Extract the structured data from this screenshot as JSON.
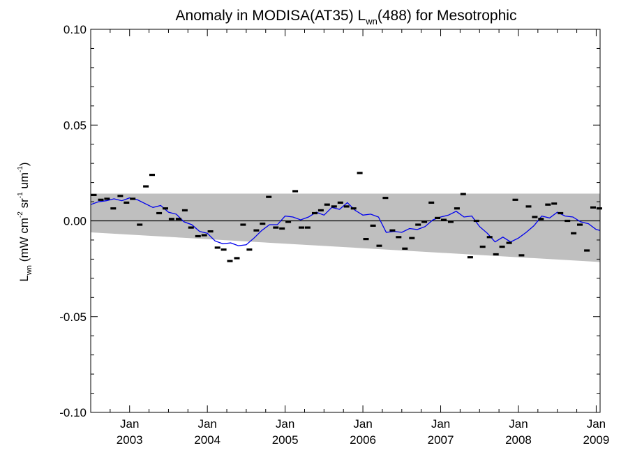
{
  "chart_data": {
    "type": "scatter",
    "title": "Anomaly in MODISA(AT35) L",
    "title_sub": "wn",
    "title_rest": "(488) for Mesotrophic",
    "ylabel_parts": [
      "L",
      "wn",
      " (mW cm",
      "-2",
      " sr",
      "-1",
      " um",
      "-1",
      ")"
    ],
    "ylim": [
      -0.1,
      0.1
    ],
    "yticks": [
      "-0.10",
      "-0.05",
      "0.00",
      "0.05",
      "0.10"
    ],
    "xlim": [
      2002.5,
      2009.05
    ],
    "xticks": [
      {
        "x": 2003,
        "line1": "Jan",
        "line2": "2003"
      },
      {
        "x": 2004,
        "line1": "Jan",
        "line2": "2004"
      },
      {
        "x": 2005,
        "line1": "Jan",
        "line2": "2005"
      },
      {
        "x": 2006,
        "line1": "Jan",
        "line2": "2006"
      },
      {
        "x": 2007,
        "line1": "Jan",
        "line2": "2007"
      },
      {
        "x": 2008,
        "line1": "Jan",
        "line2": "2008"
      },
      {
        "x": 2009,
        "line1": "Jan",
        "line2": "2009"
      }
    ],
    "band": {
      "x": [
        2002.5,
        2009.05
      ],
      "upper": [
        0.0142,
        0.0142
      ],
      "lower": [
        -0.006,
        -0.0215
      ]
    },
    "zero_line": 0.0,
    "colors": {
      "band": "#bfbfbf",
      "smooth": "#0000ee",
      "points": "#000000"
    },
    "points": {
      "name": "monthly anomaly",
      "x": [
        2002.54,
        2002.63,
        2002.71,
        2002.79,
        2002.88,
        2002.96,
        2003.04,
        2003.13,
        2003.21,
        2003.29,
        2003.38,
        2003.46,
        2003.54,
        2003.63,
        2003.71,
        2003.79,
        2003.88,
        2003.96,
        2004.04,
        2004.13,
        2004.21,
        2004.29,
        2004.38,
        2004.46,
        2004.54,
        2004.63,
        2004.71,
        2004.79,
        2004.88,
        2004.96,
        2005.04,
        2005.13,
        2005.21,
        2005.29,
        2005.38,
        2005.46,
        2005.54,
        2005.63,
        2005.71,
        2005.79,
        2005.88,
        2005.96,
        2006.04,
        2006.13,
        2006.21,
        2006.29,
        2006.38,
        2006.46,
        2006.54,
        2006.63,
        2006.71,
        2006.79,
        2006.88,
        2006.96,
        2007.04,
        2007.13,
        2007.21,
        2007.29,
        2007.38,
        2007.46,
        2007.54,
        2007.63,
        2007.71,
        2007.79,
        2007.88,
        2007.96,
        2008.04,
        2008.13,
        2008.21,
        2008.29,
        2008.38,
        2008.46,
        2008.54,
        2008.63,
        2008.71,
        2008.79,
        2008.88,
        2008.96,
        2009.04
      ],
      "y": [
        0.0135,
        0.011,
        0.0115,
        0.0065,
        0.013,
        0.0095,
        0.0115,
        -0.002,
        0.018,
        0.024,
        0.004,
        0.0065,
        0.001,
        0.001,
        0.0055,
        -0.0035,
        -0.008,
        -0.0075,
        -0.0055,
        -0.014,
        -0.015,
        -0.021,
        -0.0195,
        -0.002,
        -0.015,
        -0.005,
        -0.0015,
        0.0125,
        -0.0035,
        -0.004,
        -0.0005,
        0.0155,
        -0.0035,
        -0.0035,
        0.004,
        0.0055,
        0.0085,
        0.0075,
        0.0095,
        0.0075,
        0.0065,
        0.025,
        -0.0095,
        -0.0025,
        -0.013,
        0.012,
        -0.005,
        -0.0085,
        -0.0145,
        -0.009,
        -0.002,
        -0.0005,
        0.0095,
        0.0015,
        0.0005,
        -0.0005,
        0.0065,
        0.014,
        -0.019,
        0.0,
        -0.0135,
        -0.0085,
        -0.0175,
        -0.0135,
        -0.0115,
        0.011,
        -0.018,
        0.0075,
        0.002,
        0.001,
        0.0085,
        0.009,
        0.004,
        0.0,
        -0.0065,
        -0.002,
        -0.0155,
        0.007,
        0.0065
      ]
    },
    "smooth": {
      "name": "running mean",
      "x": [
        2002.5,
        2002.6,
        2002.7,
        2002.8,
        2002.9,
        2003.0,
        2003.1,
        2003.2,
        2003.3,
        2003.4,
        2003.5,
        2003.6,
        2003.7,
        2003.8,
        2003.9,
        2004.0,
        2004.1,
        2004.2,
        2004.3,
        2004.4,
        2004.5,
        2004.6,
        2004.7,
        2004.8,
        2004.9,
        2005.0,
        2005.1,
        2005.2,
        2005.3,
        2005.4,
        2005.5,
        2005.6,
        2005.7,
        2005.8,
        2005.9,
        2006.0,
        2006.1,
        2006.2,
        2006.3,
        2006.4,
        2006.5,
        2006.6,
        2006.7,
        2006.8,
        2006.9,
        2007.0,
        2007.1,
        2007.2,
        2007.3,
        2007.4,
        2007.5,
        2007.6,
        2007.7,
        2007.8,
        2007.9,
        2008.0,
        2008.1,
        2008.2,
        2008.3,
        2008.4,
        2008.5,
        2008.6,
        2008.7,
        2008.8,
        2008.9,
        2009.0,
        2009.05
      ],
      "y": [
        0.0085,
        0.01,
        0.0105,
        0.0115,
        0.0105,
        0.012,
        0.011,
        0.009,
        0.007,
        0.008,
        0.0045,
        0.0035,
        -0.0005,
        -0.002,
        -0.0055,
        -0.0065,
        -0.0105,
        -0.012,
        -0.0115,
        -0.013,
        -0.0125,
        -0.009,
        -0.005,
        -0.002,
        -0.002,
        0.0025,
        0.002,
        0.0005,
        0.002,
        0.0045,
        0.003,
        0.007,
        0.006,
        0.0095,
        0.0055,
        0.003,
        0.0035,
        0.002,
        -0.006,
        -0.0055,
        -0.006,
        -0.004,
        -0.0045,
        -0.003,
        0.0005,
        0.002,
        0.003,
        0.005,
        0.002,
        0.0025,
        -0.003,
        -0.0065,
        -0.011,
        -0.0085,
        -0.011,
        -0.009,
        -0.006,
        -0.0025,
        0.0025,
        0.0015,
        0.0045,
        0.0025,
        0.002,
        -0.0005,
        -0.0015,
        -0.0045,
        -0.005
      ]
    }
  }
}
